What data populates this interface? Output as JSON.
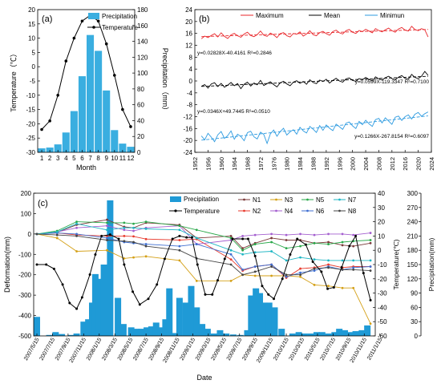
{
  "chart_data": [
    {
      "id": "a",
      "panel_label": "(a)",
      "type": "bar",
      "categories": [
        "1",
        "2",
        "3",
        "4",
        "5",
        "6",
        "7",
        "8",
        "9",
        "10",
        "11",
        "12"
      ],
      "xlabel": "Month",
      "ylabel_left": "Temperature（℃）",
      "ylabel_right": "Precipitation（mm）",
      "ylim_left": [
        -30,
        20
      ],
      "ylim_right": [
        0,
        180
      ],
      "yticks_left": [
        -30,
        -25,
        -20,
        -15,
        -10,
        -5,
        0,
        5,
        10,
        15,
        20
      ],
      "yticks_right": [
        0,
        20,
        40,
        60,
        80,
        100,
        120,
        140,
        160,
        180
      ],
      "legend": {
        "position": "top-right"
      },
      "series": [
        {
          "name": "Precipitation",
          "kind": "bar",
          "axis": "right",
          "color": "#3aaee0",
          "values": [
            5,
            6,
            10,
            25,
            52,
            96,
            148,
            128,
            78,
            28,
            11,
            7
          ]
        },
        {
          "name": "Temperature",
          "kind": "line",
          "axis": "left",
          "color": "#000000",
          "values": [
            -22,
            -19,
            -10,
            2,
            10,
            16,
            18,
            16,
            8,
            -3,
            -15,
            -21
          ]
        }
      ]
    },
    {
      "id": "b",
      "panel_label": "(b)",
      "type": "line",
      "ylim": [
        -24,
        24
      ],
      "yticks": [
        -24,
        -20,
        -16,
        -12,
        -8,
        -4,
        0,
        4,
        8,
        12,
        16,
        20,
        24
      ],
      "xlim": [
        1952,
        2024
      ],
      "xticks": [
        1952,
        1956,
        1960,
        1964,
        1968,
        1972,
        1976,
        1980,
        1984,
        1988,
        1992,
        1996,
        2000,
        2004,
        2008,
        2012,
        2016,
        2020,
        2024
      ],
      "legend": {
        "position": "top"
      },
      "series": [
        {
          "name": "Maximum",
          "color": "#e8262a",
          "start_year": 1954,
          "values": [
            14.2,
            15.1,
            14.6,
            15.3,
            15.9,
            14.8,
            16.2,
            15.0,
            14.3,
            15.5,
            16.0,
            15.2,
            14.7,
            15.8,
            16.4,
            15.3,
            14.9,
            15.6,
            16.8,
            15.4,
            15.0,
            16.1,
            15.5,
            14.6,
            15.9,
            16.3,
            15.2,
            14.8,
            16.0,
            15.7,
            16.5,
            15.1,
            15.8,
            16.9,
            15.6,
            15.2,
            16.3,
            16.7,
            15.9,
            15.4,
            16.6,
            17.1,
            16.2,
            15.8,
            16.9,
            17.3,
            16.4,
            16.0,
            17.0,
            16.6,
            17.4,
            16.8,
            16.2,
            17.6,
            17.0,
            16.5,
            17.2,
            17.8,
            16.9,
            16.4,
            17.5,
            18.0,
            17.1,
            16.8,
            18.4,
            17.3,
            16.9,
            17.6,
            17.2,
            14.8
          ]
        },
        {
          "name": "Mean",
          "color": "#000000",
          "start_year": 1954,
          "values": [
            -1.8,
            -1.2,
            -2.4,
            -1.0,
            -0.6,
            -1.9,
            -0.8,
            -2.1,
            -1.4,
            -0.5,
            -1.6,
            -0.9,
            -2.6,
            -1.1,
            -0.4,
            -1.7,
            -0.7,
            -1.3,
            0.2,
            -1.5,
            -0.9,
            -0.3,
            -1.2,
            -2.0,
            -0.6,
            -0.1,
            -1.0,
            -1.6,
            -0.4,
            0.1,
            -0.8,
            -0.2,
            -1.1,
            0.4,
            -0.5,
            -0.9,
            0.3,
            -0.2,
            0.6,
            -0.7,
            0.2,
            0.9,
            0.0,
            -0.4,
            0.7,
            1.0,
            0.2,
            -0.1,
            0.8,
            0.4,
            1.2,
            0.5,
            0.0,
            1.4,
            0.7,
            0.3,
            1.1,
            1.6,
            0.8,
            0.4,
            1.3,
            1.8,
            0.9,
            0.6,
            2.2,
            1.2,
            0.8,
            1.6,
            3.2,
            1.9
          ]
        },
        {
          "name": "Minimun",
          "color": "#2e9be0",
          "start_year": 1954,
          "values": [
            -18.5,
            -19.8,
            -17.6,
            -18.9,
            -20.4,
            -18.1,
            -17.0,
            -19.3,
            -18.4,
            -16.8,
            -19.6,
            -17.9,
            -18.7,
            -20.1,
            -17.4,
            -16.9,
            -18.8,
            -19.5,
            -17.2,
            -18.0,
            -21.0,
            -17.8,
            -16.5,
            -18.6,
            -17.0,
            -15.9,
            -18.2,
            -17.1,
            -16.4,
            -17.9,
            -15.6,
            -16.8,
            -17.5,
            -15.3,
            -16.2,
            -17.3,
            -15.0,
            -16.6,
            -14.8,
            -15.9,
            -16.7,
            -14.5,
            -15.4,
            -16.3,
            -14.2,
            -13.8,
            -15.1,
            -16.0,
            -13.6,
            -14.7,
            -13.2,
            -14.4,
            -15.3,
            -13.0,
            -12.6,
            -14.1,
            -12.4,
            -13.5,
            -14.6,
            -12.2,
            -11.8,
            -13.3,
            -12.0,
            -11.4,
            -12.8,
            -11.2,
            -10.6,
            -11.9,
            -11.0,
            -10.4
          ]
        }
      ],
      "equations": [
        {
          "text": "y=0.02828X-40.4161 R²=0.2846",
          "series": "Maximum"
        },
        {
          "text": "y=0.0599X-119.3347 R²=0.7100",
          "series": "Mean"
        },
        {
          "text": "y=0.0346X+49.7445 R²=0.0510",
          "series": "Minimun"
        },
        {
          "text": "y=0.1266X-267.8154 R²=0.6097",
          "series": "Minimun"
        }
      ]
    },
    {
      "id": "c",
      "panel_label": "(c)",
      "type": "line",
      "xlabel": "Date",
      "ylabel_left": "Deformation(mm)",
      "ylabel_right1": "Temperature(℃)",
      "ylabel_right2": "Precipitation(mm)",
      "ylim_left": [
        -500,
        200
      ],
      "ylim_right1": [
        -60,
        40
      ],
      "ylim_right2": [
        0,
        300
      ],
      "yticks_left": [
        -500,
        -400,
        -300,
        -200,
        -100,
        0,
        100,
        200
      ],
      "yticks_right1": [
        -60,
        -50,
        -40,
        -30,
        -20,
        -10,
        0,
        10,
        20,
        30,
        40
      ],
      "yticks_right2": [
        0,
        30,
        60,
        90,
        120,
        150,
        180,
        210,
        240,
        270,
        300
      ],
      "xticks": [
        "2007/5/15",
        "2007/7/15",
        "2007/9/15",
        "2007/11/15",
        "2008/1/15",
        "2008/3/15",
        "2008/5/15",
        "2008/7/15",
        "2008/9/15",
        "2008/11/15",
        "2009/1/15",
        "2009/3/15",
        "2009/5/15",
        "2009/7/15",
        "2009/9/15",
        "2009/11/15",
        "2010/1/15",
        "2010/3/15",
        "2010/5/15",
        "2010/7/15",
        "2010/9/15",
        "2010/11/15",
        "2011/1/15"
      ],
      "legend": {
        "position": "top-right"
      },
      "precipitation": {
        "name": "Precipitation",
        "color": "#1f9ad6",
        "t": [
          0,
          1.6,
          2.4,
          3.2,
          4.4,
          5.1,
          6.0,
          6.6,
          7.1,
          7.5,
          8.0,
          8.6,
          9.4,
          10.4,
          11.1,
          12.1,
          12.8,
          13.4,
          14.1,
          14.7,
          15.3,
          15.9,
          16.5,
          17.0,
          17.6,
          18.3,
          19.1,
          19.8,
          20.5,
          21.2,
          21.9,
          22.7,
          23.5,
          24.3,
          25.2,
          26.1,
          27.0,
          27.5,
          28.1,
          28.6,
          29.2,
          29.8,
          30.5,
          31.4,
          32.8,
          33.6,
          34.3,
          35.1,
          35.9,
          36.6,
          37.4,
          38.2,
          38.8,
          39.5,
          40.2,
          40.9,
          41.7,
          42.4
        ],
        "values": [
          40,
          2,
          8,
          4,
          2,
          5,
          30,
          35,
          70,
          130,
          120,
          150,
          285,
          80,
          25,
          18,
          15,
          15,
          18,
          20,
          28,
          18,
          35,
          100,
          6,
          80,
          70,
          105,
          60,
          25,
          15,
          5,
          12,
          5,
          3,
          2,
          12,
          85,
          100,
          90,
          70,
          70,
          60,
          15,
          5,
          8,
          5,
          5,
          8,
          8,
          5,
          8,
          15,
          12,
          8,
          10,
          12,
          22
        ]
      },
      "temperature": {
        "name": "Temperature",
        "color": "#000000",
        "t": [
          0,
          1.2,
          2.2,
          3.3,
          4.2,
          5.1,
          5.8,
          6.8,
          7.5,
          8.3,
          9.4,
          10.5,
          11.2,
          12.3,
          13.2,
          14.3,
          15.4,
          16.4,
          17.4,
          18.3,
          19.2,
          19.9,
          20.6,
          21.6,
          22.5,
          23.2,
          24.1,
          25.1,
          26.4,
          27.1,
          28.0,
          28.9,
          29.7,
          30.4,
          31.5,
          32.5,
          33.4,
          34.5,
          35.4,
          36.5,
          37.3,
          38.1,
          39.1,
          40.1,
          40.9,
          41.9,
          42.8
        ],
        "values": [
          -10,
          -10,
          -13,
          -24,
          -37,
          -41,
          -33,
          -17,
          -3,
          10,
          11,
          8,
          -10,
          -29,
          -38,
          -34,
          -24,
          -6,
          8,
          10,
          9,
          9,
          -10,
          -31,
          -31,
          -21,
          -6,
          8,
          8,
          8,
          -4,
          -25,
          -31,
          -34,
          -20,
          -3,
          8,
          4,
          -8,
          -15,
          -27,
          -26,
          -12,
          3,
          10,
          -16,
          -35
        ]
      },
      "series": [
        {
          "name": "N1",
          "color": "#7b3a3a",
          "marker": "circle",
          "t": [
            0,
            2.6,
            5.1,
            9.0,
            11.2,
            12.4,
            14.0,
            18.3,
            20.5,
            24.9,
            26.4,
            28.0,
            30.1,
            32.0,
            33.8,
            35.6,
            37.4,
            39.2,
            40.6,
            42.8
          ],
          "values": [
            0,
            8,
            45,
            70,
            35,
            30,
            55,
            45,
            -20,
            -10,
            -70,
            -45,
            -20,
            -30,
            -30,
            -45,
            -40,
            -55,
            -60,
            -45
          ]
        },
        {
          "name": "N2",
          "color": "#e83a2d",
          "marker": "circle",
          "t": [
            0,
            2.6,
            5.1,
            9.0,
            11.2,
            12.4,
            14.0,
            18.3,
            20.5,
            24.9,
            26.4,
            28.0,
            30.1,
            32.0,
            33.8,
            35.6,
            37.4,
            39.2,
            40.6,
            42.8
          ],
          "values": [
            0,
            5,
            -5,
            -10,
            -10,
            -12,
            -25,
            -30,
            -25,
            -125,
            -180,
            -160,
            -150,
            -215,
            -170,
            -165,
            -150,
            -165,
            -160,
            -160
          ]
        },
        {
          "name": "N3",
          "color": "#d4a017",
          "marker": "circle",
          "t": [
            0,
            2.6,
            5.1,
            9.0,
            11.2,
            12.4,
            14.0,
            18.3,
            20.5,
            24.9,
            26.4,
            28.0,
            30.1,
            32.0,
            33.8,
            35.6,
            37.4,
            39.2,
            40.6,
            42.8
          ],
          "values": [
            0,
            -20,
            -85,
            -80,
            -120,
            -115,
            -110,
            -130,
            -230,
            -230,
            -200,
            -205,
            -205,
            -205,
            -210,
            -250,
            -255,
            -265,
            -265,
            -440
          ]
        },
        {
          "name": "N4",
          "color": "#a45fcf",
          "marker": "circle",
          "t": [
            0,
            2.6,
            5.1,
            9.0,
            11.2,
            12.4,
            14.0,
            18.3,
            20.5,
            24.9,
            26.4,
            28.0,
            30.1,
            32.0,
            33.8,
            35.6,
            37.4,
            39.2,
            40.6,
            42.8
          ],
          "values": [
            0,
            10,
            30,
            40,
            20,
            15,
            30,
            40,
            -50,
            -30,
            -10,
            -5,
            0,
            -5,
            0,
            -5,
            0,
            0,
            -5,
            5
          ]
        },
        {
          "name": "N5",
          "color": "#2aa84a",
          "marker": "circle",
          "t": [
            0,
            2.6,
            5.1,
            9.0,
            11.2,
            12.4,
            14.0,
            18.3,
            20.5,
            24.9,
            26.4,
            28.0,
            30.1,
            32.0,
            33.8,
            35.6,
            37.4,
            39.2,
            40.6,
            42.8
          ],
          "values": [
            0,
            15,
            60,
            55,
            55,
            50,
            60,
            40,
            20,
            -20,
            -80,
            -50,
            -40,
            -70,
            -60,
            -45,
            -50,
            -40,
            -35,
            -30
          ]
        },
        {
          "name": "N6",
          "color": "#3f6fd1",
          "marker": "circle",
          "t": [
            0,
            2.6,
            5.1,
            9.0,
            11.2,
            12.4,
            14.0,
            18.3,
            20.5,
            24.9,
            26.4,
            28.0,
            30.1,
            32.0,
            33.8,
            35.6,
            37.4,
            39.2,
            40.6,
            42.8
          ],
          "values": [
            0,
            5,
            0,
            -20,
            -40,
            -45,
            -50,
            -60,
            -50,
            -100,
            -175,
            -160,
            -150,
            -210,
            -190,
            -180,
            -160,
            -175,
            -165,
            -160
          ]
        },
        {
          "name": "N7",
          "color": "#1fb6c4",
          "marker": "circle",
          "t": [
            0,
            2.6,
            5.1,
            9.0,
            11.2,
            12.4,
            14.0,
            18.3,
            20.5,
            24.9,
            26.4,
            28.0,
            30.1,
            32.0,
            33.8,
            35.6,
            37.4,
            39.2,
            40.6,
            42.8
          ],
          "values": [
            0,
            10,
            50,
            20,
            30,
            30,
            25,
            20,
            -20,
            -80,
            -100,
            -90,
            -85,
            -130,
            -115,
            -125,
            -130,
            -130,
            -130,
            -130
          ]
        },
        {
          "name": "N8",
          "color": "#444444",
          "marker": "circle",
          "t": [
            0,
            2.6,
            5.1,
            9.0,
            11.2,
            12.4,
            14.0,
            18.3,
            20.5,
            24.9,
            26.4,
            28.0,
            30.1,
            32.0,
            33.8,
            35.6,
            37.4,
            39.2,
            40.6,
            42.8
          ],
          "values": [
            0,
            -5,
            -10,
            -30,
            -35,
            -40,
            -60,
            -80,
            -120,
            -150,
            -200,
            -185,
            -160,
            -200,
            -200,
            -170,
            -165,
            -175,
            -175,
            -180
          ]
        }
      ]
    }
  ]
}
